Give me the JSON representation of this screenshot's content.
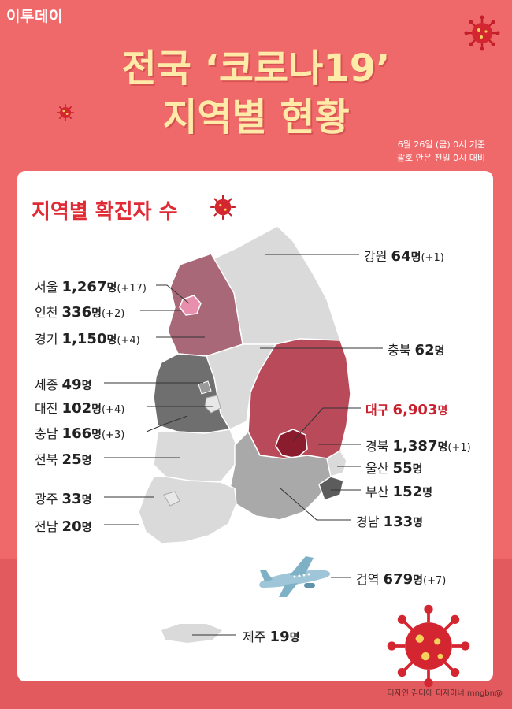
{
  "brand": "이투데이",
  "title": {
    "line1": "전국 ‘코로나19’",
    "line2": "지역별 현황"
  },
  "basis": {
    "line1": "6월 26일 (금) 0시 기준",
    "line2": "괄호 안은 전일 0시 대비"
  },
  "section_title": "지역별 확진자 수",
  "colors": {
    "background": "#f0696a",
    "title": "#ffeaa8",
    "accent": "#e02a34",
    "daegu": "#a5243a",
    "gyeongbuk": "#b84a5a",
    "seoul_gyeonggi": "#a86878",
    "chungnam": "#6f6f6f",
    "gyeongnam": "#a9a9a9",
    "default_region": "#dadada"
  },
  "icons": [
    "virus-icon",
    "airplane-icon"
  ],
  "regions": [
    {
      "id": "gangwon",
      "name": "강원",
      "count": "64",
      "unit": "명",
      "change": "(+1)"
    },
    {
      "id": "seoul",
      "name": "서울",
      "count": "1,267",
      "unit": "명",
      "change": "(+17)"
    },
    {
      "id": "incheon",
      "name": "인천",
      "count": "336",
      "unit": "명",
      "change": "(+2)"
    },
    {
      "id": "gyeonggi",
      "name": "경기",
      "count": "1,150",
      "unit": "명",
      "change": "(+4)"
    },
    {
      "id": "chungbuk",
      "name": "충북",
      "count": "62",
      "unit": "명",
      "change": ""
    },
    {
      "id": "sejong",
      "name": "세종",
      "count": "49",
      "unit": "명",
      "change": ""
    },
    {
      "id": "daejeon",
      "name": "대전",
      "count": "102",
      "unit": "명",
      "change": "(+4)"
    },
    {
      "id": "daegu",
      "name": "대구",
      "count": "6,903",
      "unit": "명",
      "change": ""
    },
    {
      "id": "chungnam",
      "name": "충남",
      "count": "166",
      "unit": "명",
      "change": "(+3)"
    },
    {
      "id": "gyeongbuk",
      "name": "경북",
      "count": "1,387",
      "unit": "명",
      "change": "(+1)"
    },
    {
      "id": "jeonbuk",
      "name": "전북",
      "count": "25",
      "unit": "명",
      "change": ""
    },
    {
      "id": "ulsan",
      "name": "울산",
      "count": "55",
      "unit": "명",
      "change": ""
    },
    {
      "id": "busan",
      "name": "부산",
      "count": "152",
      "unit": "명",
      "change": ""
    },
    {
      "id": "gwangju",
      "name": "광주",
      "count": "33",
      "unit": "명",
      "change": ""
    },
    {
      "id": "jeonnam",
      "name": "전남",
      "count": "20",
      "unit": "명",
      "change": ""
    },
    {
      "id": "gyeongnam",
      "name": "경남",
      "count": "133",
      "unit": "명",
      "change": ""
    },
    {
      "id": "quarantine",
      "name": "검역",
      "count": "679",
      "unit": "명",
      "change": "(+7)"
    },
    {
      "id": "jeju",
      "name": "제주",
      "count": "19",
      "unit": "명",
      "change": ""
    }
  ],
  "credit": "디자인 김다애 디자이너 mngbn@"
}
